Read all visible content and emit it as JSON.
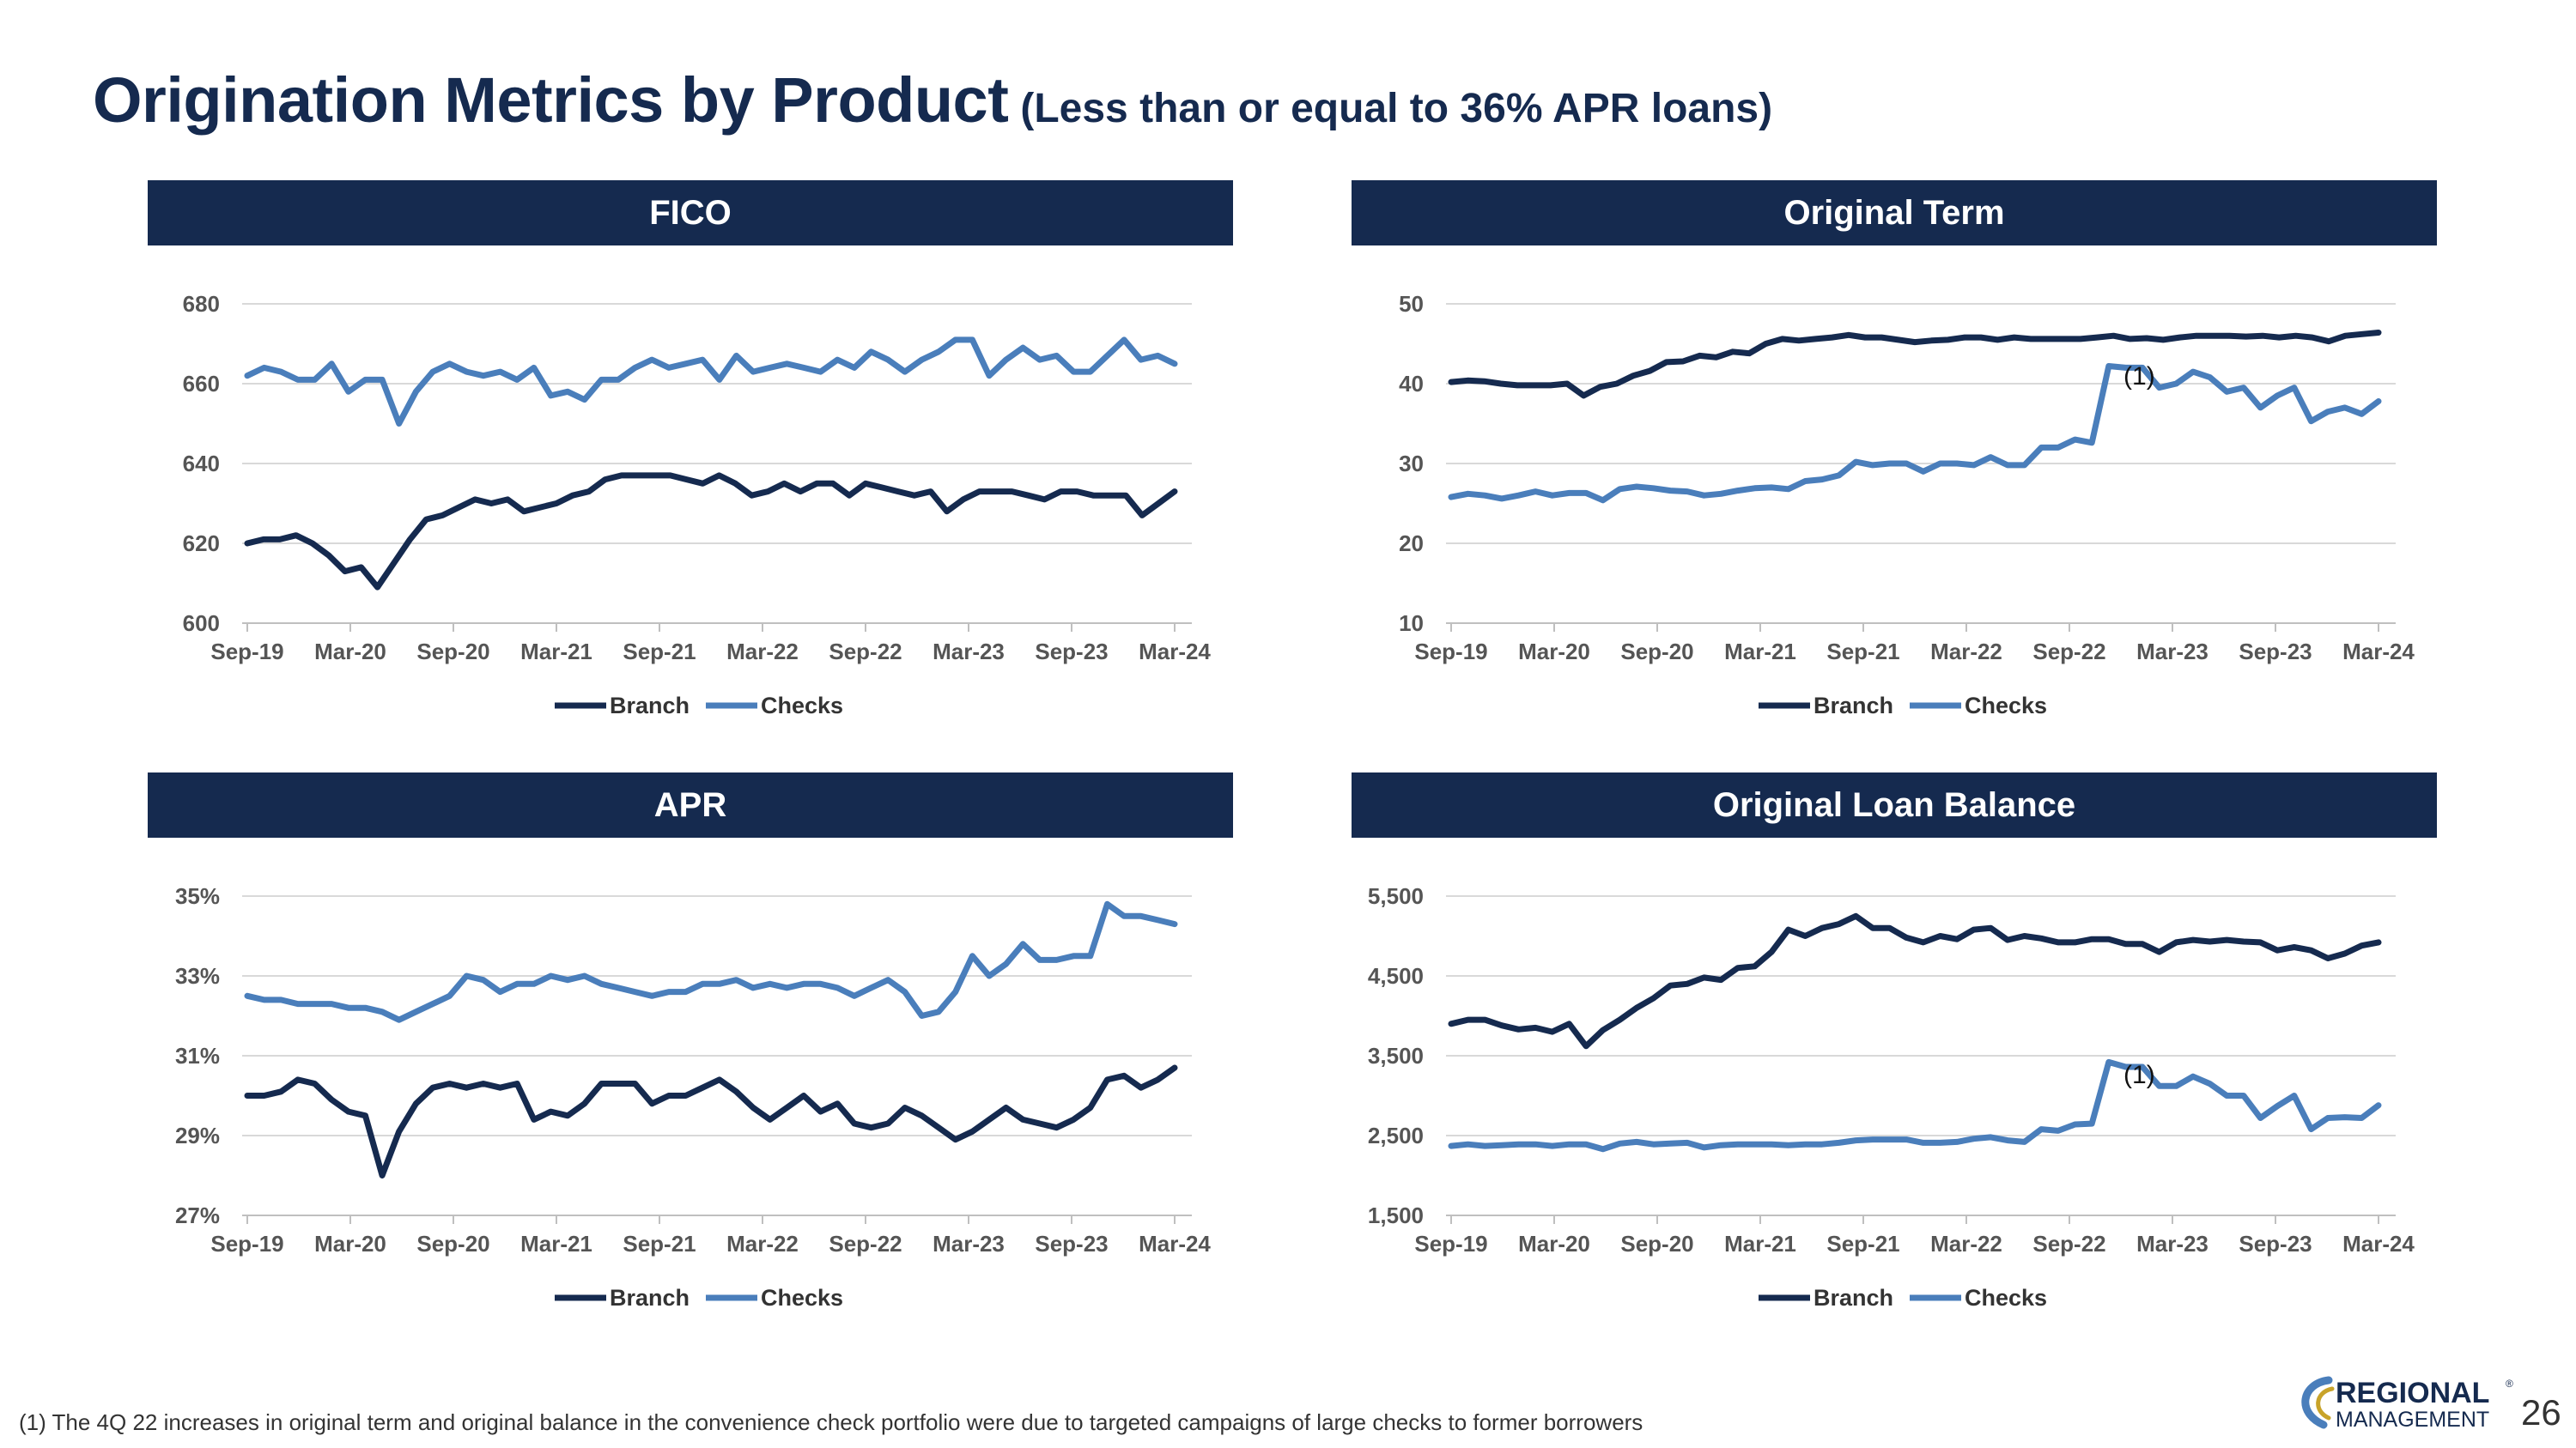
{
  "page": {
    "title": "Origination Metrics by Product",
    "subtitle": "(Less than or equal to 36% APR loans)",
    "footnote": "(1)  The 4Q 22 increases in original term and original balance in the convenience check portfolio were due to targeted campaigns of large checks to former borrowers",
    "page_number": "26",
    "logo": {
      "line1": "REGIONAL",
      "line2": "MANAGEMENT",
      "mark": "®"
    }
  },
  "colors": {
    "header_bg": "#152a4f",
    "branch": "#152a4f",
    "checks": "#4a7ebb",
    "grid": "#d9d9d9"
  },
  "chart_data": [
    {
      "id": "fico",
      "type": "line",
      "title": "FICO",
      "x_labels": [
        "Sep-19",
        "Mar-20",
        "Sep-20",
        "Mar-21",
        "Sep-21",
        "Mar-22",
        "Sep-22",
        "Mar-23",
        "Sep-23",
        "Mar-24"
      ],
      "y_ticks": [
        "600",
        "620",
        "640",
        "660",
        "680"
      ],
      "ylim": [
        600,
        680
      ],
      "series": [
        {
          "name": "Branch",
          "values": [
            620,
            621,
            621,
            622,
            620,
            617,
            613,
            614,
            609,
            615,
            621,
            626,
            627,
            629,
            631,
            630,
            631,
            628,
            629,
            630,
            632,
            633,
            636,
            637,
            637,
            637,
            637,
            636,
            635,
            637,
            635,
            632,
            633,
            635,
            633,
            635,
            635,
            632,
            635,
            634,
            633,
            632,
            633,
            628,
            631,
            633,
            633,
            633,
            632,
            631,
            633,
            633,
            632,
            632,
            632,
            627,
            630,
            633
          ]
        },
        {
          "name": "Checks",
          "values": [
            662,
            664,
            663,
            661,
            661,
            665,
            658,
            661,
            661,
            650,
            658,
            663,
            665,
            663,
            662,
            663,
            661,
            664,
            657,
            658,
            656,
            661,
            661,
            664,
            666,
            664,
            665,
            666,
            661,
            667,
            663,
            664,
            665,
            664,
            663,
            666,
            664,
            668,
            666,
            663,
            666,
            668,
            671,
            671,
            662,
            666,
            669,
            666,
            667,
            663,
            663,
            667,
            671,
            666,
            667,
            665
          ]
        }
      ],
      "legend": [
        "Branch",
        "Checks"
      ]
    },
    {
      "id": "term",
      "type": "line",
      "title": "Original Term",
      "x_labels": [
        "Sep-19",
        "Mar-20",
        "Sep-20",
        "Mar-21",
        "Sep-21",
        "Mar-22",
        "Sep-22",
        "Mar-23",
        "Sep-23",
        "Mar-24"
      ],
      "y_ticks": [
        "10",
        "20",
        "30",
        "40",
        "50"
      ],
      "ylim": [
        10,
        50
      ],
      "series": [
        {
          "name": "Branch",
          "values": [
            40.2,
            40.4,
            40.3,
            40.0,
            39.8,
            39.8,
            39.8,
            40.0,
            38.5,
            39.6,
            40.0,
            41.0,
            41.6,
            42.7,
            42.8,
            43.5,
            43.3,
            44.0,
            43.8,
            45.0,
            45.6,
            45.4,
            45.6,
            45.8,
            46.1,
            45.8,
            45.8,
            45.5,
            45.2,
            45.4,
            45.5,
            45.8,
            45.8,
            45.5,
            45.8,
            45.6,
            45.6,
            45.6,
            45.6,
            45.8,
            46.0,
            45.6,
            45.7,
            45.5,
            45.8,
            46.0,
            46.0,
            46.0,
            45.9,
            46.0,
            45.8,
            46.0,
            45.8,
            45.3,
            46.0,
            46.2,
            46.4
          ]
        },
        {
          "name": "Checks",
          "values": [
            25.8,
            26.2,
            26.0,
            25.6,
            26.0,
            26.5,
            26.0,
            26.3,
            26.3,
            25.4,
            26.8,
            27.1,
            26.9,
            26.6,
            26.5,
            26.0,
            26.2,
            26.6,
            26.9,
            27.0,
            26.8,
            27.8,
            28.0,
            28.5,
            30.2,
            29.8,
            30.0,
            30.0,
            29.0,
            30.0,
            30.0,
            29.8,
            30.8,
            29.8,
            29.8,
            32.0,
            32.0,
            33.0,
            32.6,
            42.2,
            42.0,
            42.0,
            39.5,
            40.0,
            41.5,
            40.8,
            39.0,
            39.5,
            37.0,
            38.5,
            39.5,
            35.3,
            36.5,
            37.0,
            36.2,
            37.8
          ]
        }
      ],
      "legend": [
        "Branch",
        "Checks"
      ],
      "annotation": "(1)"
    },
    {
      "id": "apr",
      "type": "line",
      "title": "APR",
      "x_labels": [
        "Sep-19",
        "Mar-20",
        "Sep-20",
        "Mar-21",
        "Sep-21",
        "Mar-22",
        "Sep-22",
        "Mar-23",
        "Sep-23",
        "Mar-24"
      ],
      "y_ticks": [
        "27%",
        "29%",
        "31%",
        "33%",
        "35%"
      ],
      "ylim": [
        27,
        35
      ],
      "series": [
        {
          "name": "Branch",
          "values": [
            30.0,
            30.0,
            30.1,
            30.4,
            30.3,
            29.9,
            29.6,
            29.5,
            28.0,
            29.1,
            29.8,
            30.2,
            30.3,
            30.2,
            30.3,
            30.2,
            30.3,
            29.4,
            29.6,
            29.5,
            29.8,
            30.3,
            30.3,
            30.3,
            29.8,
            30.0,
            30.0,
            30.2,
            30.4,
            30.1,
            29.7,
            29.4,
            29.7,
            30.0,
            29.6,
            29.8,
            29.3,
            29.2,
            29.3,
            29.7,
            29.5,
            29.2,
            28.9,
            29.1,
            29.4,
            29.7,
            29.4,
            29.3,
            29.2,
            29.4,
            29.7,
            30.4,
            30.5,
            30.2,
            30.4,
            30.7
          ]
        },
        {
          "name": "Checks",
          "values": [
            32.5,
            32.4,
            32.4,
            32.3,
            32.3,
            32.3,
            32.2,
            32.2,
            32.1,
            31.9,
            32.1,
            32.3,
            32.5,
            33.0,
            32.9,
            32.6,
            32.8,
            32.8,
            33.0,
            32.9,
            33.0,
            32.8,
            32.7,
            32.6,
            32.5,
            32.6,
            32.6,
            32.8,
            32.8,
            32.9,
            32.7,
            32.8,
            32.7,
            32.8,
            32.8,
            32.7,
            32.5,
            32.7,
            32.9,
            32.6,
            32.0,
            32.1,
            32.6,
            33.5,
            33.0,
            33.3,
            33.8,
            33.4,
            33.4,
            33.5,
            33.5,
            34.8,
            34.5,
            34.5,
            34.4,
            34.3
          ]
        }
      ],
      "legend": [
        "Branch",
        "Checks"
      ]
    },
    {
      "id": "balance",
      "type": "line",
      "title": "Original Loan Balance",
      "x_labels": [
        "Sep-19",
        "Mar-20",
        "Sep-20",
        "Mar-21",
        "Sep-21",
        "Mar-22",
        "Sep-22",
        "Mar-23",
        "Sep-23",
        "Mar-24"
      ],
      "y_ticks": [
        "1,500",
        "2,500",
        "3,500",
        "4,500",
        "5,500"
      ],
      "ylim": [
        1500,
        5500
      ],
      "series": [
        {
          "name": "Branch",
          "values": [
            3900,
            3950,
            3950,
            3880,
            3830,
            3850,
            3800,
            3900,
            3620,
            3820,
            3950,
            4100,
            4220,
            4380,
            4400,
            4480,
            4450,
            4600,
            4620,
            4800,
            5080,
            5000,
            5100,
            5150,
            5250,
            5100,
            5100,
            4980,
            4920,
            5000,
            4960,
            5080,
            5100,
            4950,
            5000,
            4970,
            4920,
            4920,
            4960,
            4960,
            4900,
            4900,
            4800,
            4920,
            4950,
            4930,
            4950,
            4930,
            4920,
            4820,
            4860,
            4820,
            4720,
            4780,
            4880,
            4920
          ]
        },
        {
          "name": "Checks",
          "values": [
            2370,
            2390,
            2370,
            2380,
            2390,
            2390,
            2370,
            2390,
            2390,
            2330,
            2400,
            2420,
            2390,
            2400,
            2410,
            2350,
            2380,
            2390,
            2390,
            2390,
            2380,
            2390,
            2390,
            2410,
            2440,
            2450,
            2450,
            2450,
            2410,
            2410,
            2420,
            2460,
            2480,
            2440,
            2420,
            2580,
            2560,
            2640,
            2650,
            3420,
            3360,
            3360,
            3120,
            3120,
            3240,
            3150,
            3000,
            3000,
            2720,
            2870,
            3000,
            2580,
            2720,
            2730,
            2720,
            2880
          ]
        }
      ],
      "legend": [
        "Branch",
        "Checks"
      ],
      "annotation": "(1)"
    }
  ]
}
